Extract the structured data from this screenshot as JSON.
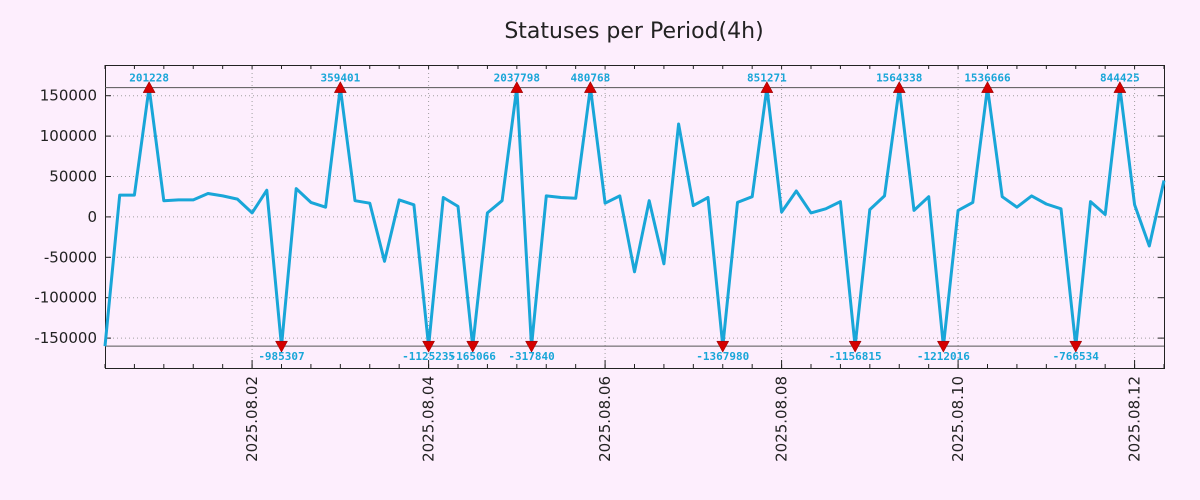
{
  "chart_data": {
    "type": "line",
    "title": "Statuses per Period(4h)",
    "xlabel": "",
    "ylabel": "",
    "ylim": [
      -187000,
      188000
    ],
    "y_ticks": [
      {
        "value": 150000,
        "label": "150000"
      },
      {
        "value": 100000,
        "label": "100000"
      },
      {
        "value": 50000,
        "label": "50000"
      },
      {
        "value": 0,
        "label": "0"
      },
      {
        "value": -50000,
        "label": "-50000"
      },
      {
        "value": -100000,
        "label": "-100000"
      },
      {
        "value": -150000,
        "label": "-150000"
      }
    ],
    "x_major_ticks": [
      {
        "index": 10,
        "label": "2025.08.02"
      },
      {
        "index": 22,
        "label": "2025.08.04"
      },
      {
        "index": 34,
        "label": "2025.08.06"
      },
      {
        "index": 46,
        "label": "2025.08.08"
      },
      {
        "index": 58,
        "label": "2025.08.10"
      },
      {
        "index": 70,
        "label": "2025.08.12"
      }
    ],
    "x_minor_step": 2,
    "x_max_index": 72,
    "clip_limits": [
      160000,
      -160000
    ],
    "series": [
      {
        "name": "statuses",
        "color": "#19a6d8",
        "values": [
          -160000,
          27000,
          27000,
          160000,
          20000,
          21000,
          21000,
          29000,
          26000,
          22000,
          5000,
          33000,
          -160000,
          35000,
          18000,
          12000,
          160000,
          20000,
          17000,
          -55000,
          21000,
          15000,
          -160000,
          24000,
          13000,
          -160000,
          5000,
          20000,
          160000,
          -160000,
          26000,
          24000,
          23000,
          160000,
          17000,
          26000,
          -68000,
          20000,
          -58000,
          115000,
          14000,
          24000,
          -160000,
          18000,
          25000,
          160000,
          6000,
          32000,
          5000,
          10000,
          19000,
          -160000,
          9000,
          26000,
          160000,
          8000,
          25000,
          -160000,
          8000,
          18000,
          160000,
          25000,
          12000,
          26000,
          16000,
          10000,
          -160000,
          19000,
          3000,
          160000,
          15000,
          -36000,
          45000
        ]
      }
    ],
    "annotations": [
      {
        "index": 3,
        "label": "201228",
        "position": "top"
      },
      {
        "index": 12,
        "label": "-985307",
        "position": "bottom"
      },
      {
        "index": 16,
        "label": "359401",
        "position": "top"
      },
      {
        "index": 22,
        "label": "-1125235",
        "position": "bottom"
      },
      {
        "index": 25,
        "label": "-165066",
        "position": "bottom"
      },
      {
        "index": 28,
        "label": "2037798",
        "position": "top"
      },
      {
        "index": 29,
        "label": "-317840",
        "position": "bottom"
      },
      {
        "index": 33,
        "label": "480768",
        "position": "top"
      },
      {
        "index": 42,
        "label": "-1367980",
        "position": "bottom"
      },
      {
        "index": 45,
        "label": "851271",
        "position": "top"
      },
      {
        "index": 51,
        "label": "-1156815",
        "position": "bottom"
      },
      {
        "index": 54,
        "label": "1564338",
        "position": "top"
      },
      {
        "index": 57,
        "label": "-1212016",
        "position": "bottom"
      },
      {
        "index": 60,
        "label": "1536666",
        "position": "top"
      },
      {
        "index": 66,
        "label": "-766534",
        "position": "bottom"
      },
      {
        "index": 69,
        "label": "844425",
        "position": "top"
      }
    ],
    "colors": {
      "background": "#fdeefd",
      "line": "#19a6d8",
      "marker": "#d40000",
      "grid": "#a0a0a0",
      "limit_line": "#555555"
    }
  }
}
